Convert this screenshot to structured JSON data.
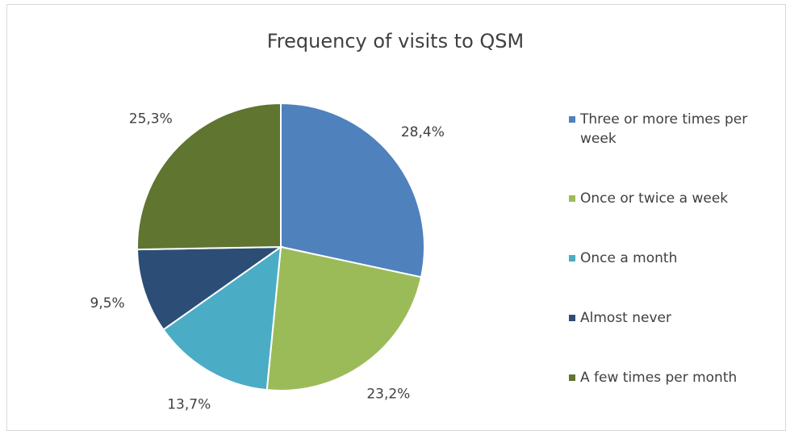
{
  "chart_data": {
    "type": "pie",
    "title": "Frequency of visits to QSM",
    "categories": [
      "Three or more times per week",
      "Once or twice a week",
      "Once a month",
      "Almost never",
      "A few times per month"
    ],
    "values": [
      28.4,
      23.2,
      13.7,
      9.5,
      25.3
    ],
    "value_labels": [
      "28,4%",
      "23,2%",
      "13,7%",
      "9,5%",
      "25,3%"
    ],
    "colors": [
      "#4f81bd",
      "#9bbb59",
      "#4bacc6",
      "#2c4d75",
      "#5f7530"
    ],
    "legend": "right"
  }
}
